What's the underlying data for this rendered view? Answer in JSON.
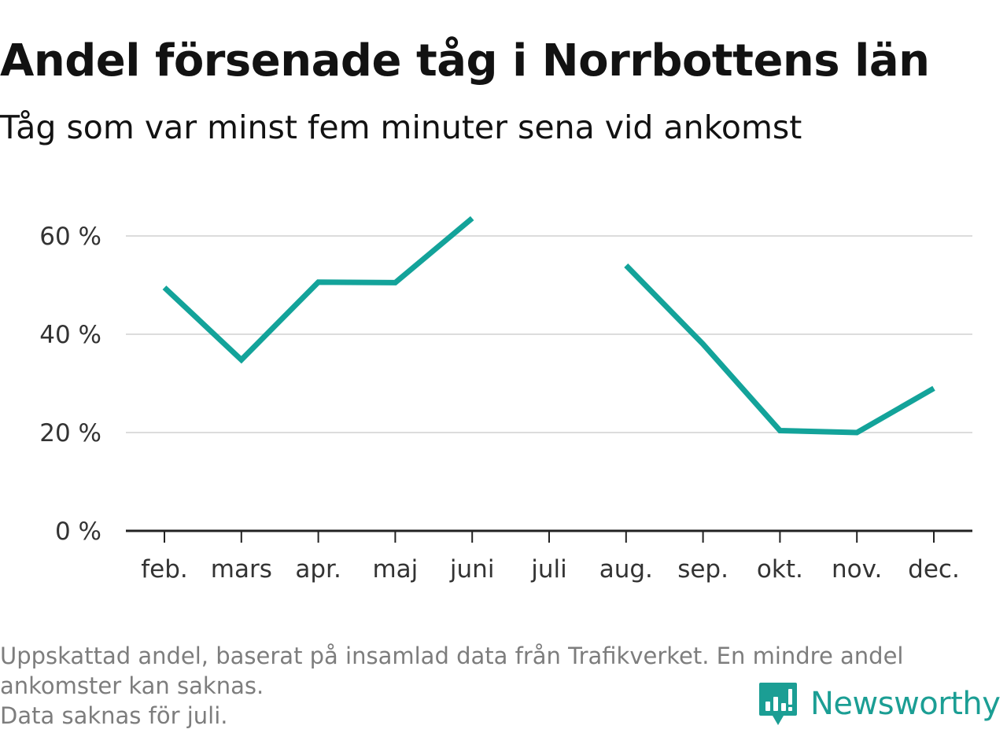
{
  "title": "Andel försenade tåg i Norrbottens län",
  "subtitle": "Tåg som var minst fem minuter sena vid ankomst",
  "notes": [
    "Uppskattad andel, baserat på insamlad data från Trafikverket. En mindre andel",
    "ankomster kan saknas.",
    "Data saknas för juli."
  ],
  "brand": {
    "name": "Newsworthy",
    "icon": "newsworthy-logo-icon",
    "color": "#1b9e94"
  },
  "chart_data": {
    "type": "line",
    "title": "Andel försenade tåg i Norrbottens län",
    "subtitle": "Tåg som var minst fem minuter sena vid ankomst",
    "categories": [
      "feb.",
      "mars",
      "apr.",
      "maj",
      "juni",
      "juli",
      "aug.",
      "sep.",
      "okt.",
      "nov.",
      "dec."
    ],
    "series": [
      {
        "values": [
          49.5,
          34.8,
          50.6,
          50.5,
          63.6,
          null,
          54.0,
          38.0,
          20.4,
          20.0,
          29.0
        ],
        "color": "#13a39a"
      }
    ],
    "ylim": [
      0,
      70
    ],
    "yticks": [
      0,
      20,
      40,
      60
    ],
    "ytick_labels": [
      "0 %",
      "20 %",
      "40 %",
      "60 %"
    ],
    "grid": true,
    "xlabel": "",
    "ylabel": ""
  }
}
